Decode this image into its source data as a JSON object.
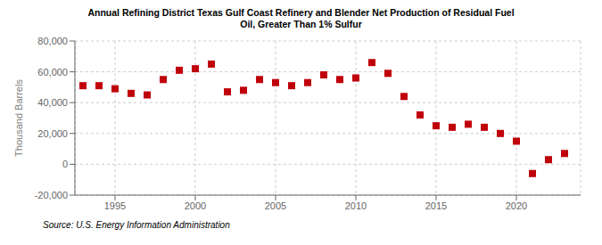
{
  "chart_data": {
    "type": "scatter",
    "title": "Annual Refining District Texas Gulf Coast Refinery and Blender Net Production of Residual Fuel\nOil, Greater Than 1% Sulfur",
    "ylabel": "Thousand Barrels",
    "source": "Source: U.S. Energy Information Administration",
    "x": [
      1993,
      1994,
      1995,
      1996,
      1997,
      1998,
      1999,
      2000,
      2001,
      2002,
      2003,
      2004,
      2005,
      2006,
      2007,
      2008,
      2009,
      2010,
      2011,
      2012,
      2013,
      2014,
      2015,
      2016,
      2017,
      2018,
      2019,
      2020,
      2021,
      2022,
      2023
    ],
    "values": [
      51000,
      51000,
      49000,
      46000,
      45000,
      55000,
      61000,
      62000,
      65000,
      47000,
      48000,
      55000,
      53000,
      51000,
      53000,
      58000,
      55000,
      56000,
      66000,
      59000,
      44000,
      32000,
      25000,
      24000,
      26000,
      24000,
      20000,
      15000,
      -6000,
      3000,
      7000
    ],
    "color": "#c0000a",
    "marker": "square",
    "xlim": [
      1992.5,
      2024
    ],
    "xticks": [
      1995,
      2000,
      2005,
      2010,
      2015,
      2020
    ],
    "ylim": [
      -20000,
      80000
    ],
    "yticks": [
      {
        "value": -20000,
        "label": "-20,000"
      },
      0,
      {
        "value": 20000,
        "label": "20,000"
      },
      {
        "value": 40000,
        "label": "40,000"
      },
      {
        "value": 60000,
        "label": "60,000"
      },
      {
        "value": 80000,
        "label": "80,000"
      }
    ],
    "grid": true
  }
}
